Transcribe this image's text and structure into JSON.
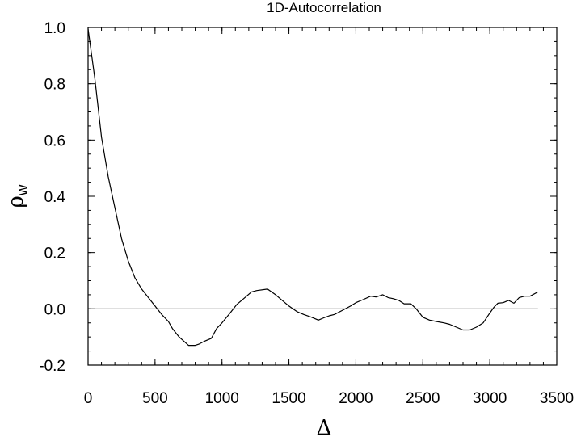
{
  "chart_data": {
    "type": "line",
    "title": "1D-Autocorrelation",
    "xlabel": "Δ",
    "ylabel": {
      "symbol": "ρ",
      "subscript": "w"
    },
    "xlim": [
      0,
      3500
    ],
    "ylim": [
      -0.2,
      1.0
    ],
    "x_ticks": [
      0,
      500,
      1000,
      1500,
      2000,
      2500,
      3000,
      3500
    ],
    "x_tick_labels": [
      "0",
      "500",
      "1000",
      "1500",
      "2000",
      "2500",
      "3000",
      "3500"
    ],
    "x_minor_step": 100,
    "y_ticks": [
      -0.2,
      0.0,
      0.2,
      0.4,
      0.6,
      0.8,
      1.0
    ],
    "y_tick_labels": [
      "-0.2",
      "0.0",
      "0.2",
      "0.4",
      "0.6",
      "0.8",
      "1.0"
    ],
    "y_minor_step": 0.05,
    "grid": false,
    "reference_line": {
      "y": 0.0,
      "x_range": [
        0,
        3360
      ]
    },
    "series": [
      {
        "x": [
          0,
          50,
          100,
          150,
          200,
          250,
          300,
          350,
          400,
          450,
          500,
          550,
          600,
          630,
          680,
          750,
          800,
          830,
          870,
          920,
          960,
          1000,
          1060,
          1110,
          1160,
          1220,
          1260,
          1340,
          1400,
          1450,
          1500,
          1560,
          1610,
          1670,
          1720,
          1760,
          1800,
          1840,
          1900,
          1960,
          2000,
          2060,
          2110,
          2150,
          2200,
          2240,
          2280,
          2320,
          2360,
          2410,
          2450,
          2500,
          2550,
          2600,
          2660,
          2700,
          2750,
          2800,
          2850,
          2900,
          2950,
          3000,
          3030,
          3060,
          3100,
          3140,
          3180,
          3220,
          3260,
          3300,
          3360
        ],
        "y": [
          0.995,
          0.82,
          0.61,
          0.47,
          0.36,
          0.25,
          0.17,
          0.11,
          0.07,
          0.04,
          0.01,
          -0.02,
          -0.045,
          -0.07,
          -0.1,
          -0.13,
          -0.13,
          -0.125,
          -0.115,
          -0.105,
          -0.07,
          -0.05,
          -0.015,
          0.015,
          0.035,
          0.06,
          0.065,
          0.07,
          0.05,
          0.03,
          0.01,
          -0.01,
          -0.02,
          -0.03,
          -0.04,
          -0.032,
          -0.025,
          -0.02,
          -0.005,
          0.01,
          0.022,
          0.034,
          0.045,
          0.042,
          0.05,
          0.04,
          0.036,
          0.03,
          0.018,
          0.018,
          0.0,
          -0.03,
          -0.04,
          -0.045,
          -0.05,
          -0.055,
          -0.065,
          -0.075,
          -0.075,
          -0.065,
          -0.05,
          -0.015,
          0.005,
          0.02,
          0.022,
          0.03,
          0.02,
          0.04,
          0.045,
          0.045,
          0.06
        ]
      }
    ]
  }
}
